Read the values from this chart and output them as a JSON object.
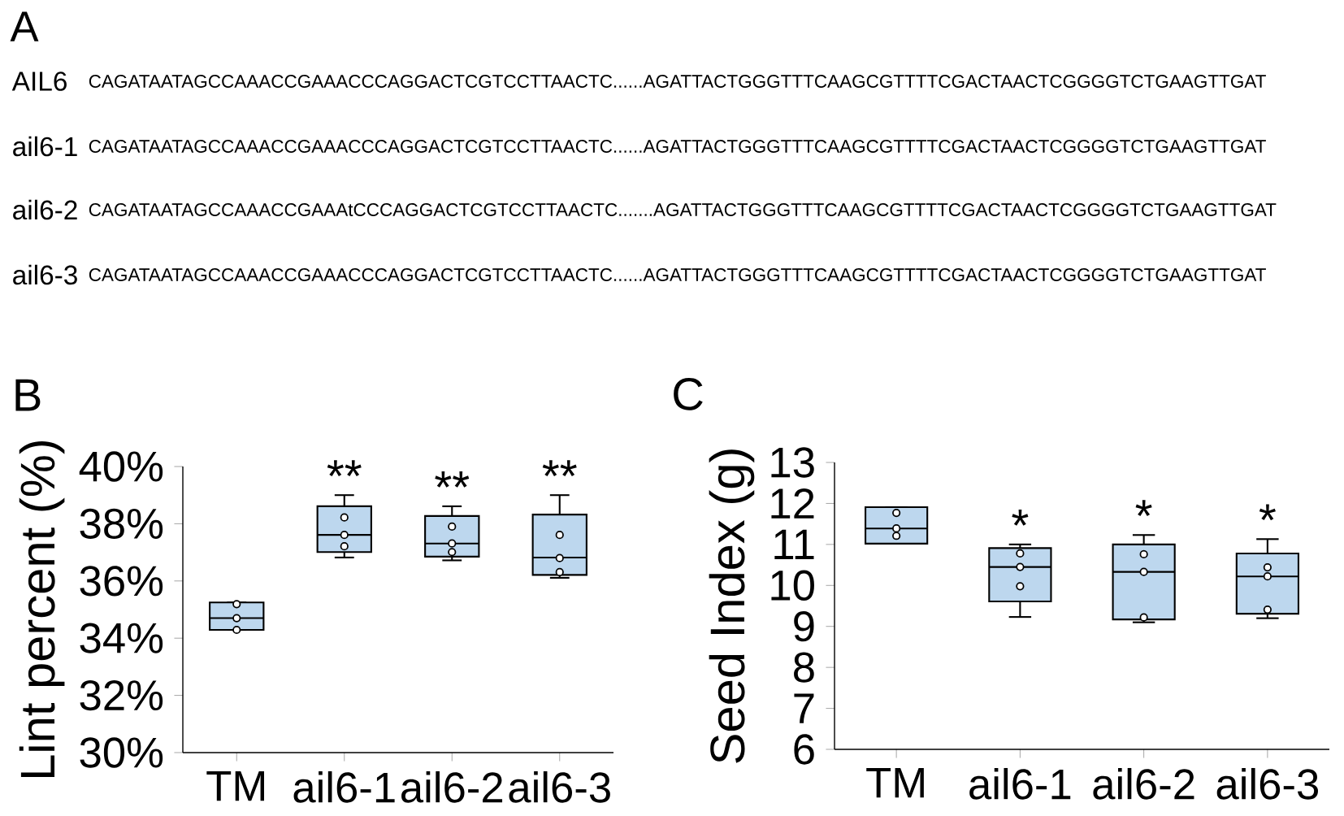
{
  "chart_data": [
    {
      "type": "other",
      "title": "A",
      "annotations": [
        "AIL6",
        "CAGATAATAGCCAAACCGAAACCCAGGACTCGTCCTTAACTC......AGATTACTGGGTTTCAAGCGTTTTCGACTAACTCGGGGTCTGAAGTTGAT",
        "ail6-1",
        "CAGATAATAGCCAAACCGAAACCCAGGACTCGTCCTTAACTC......AGATTACTGGGTTTCAAGCGTTTTCGACTAACTCGGGGTCTGAAGTTGAT",
        "ail6-2",
        "CAGATAATAGCCAAACCGAAAtCCCAGGACTCGTCCTTAACTC.......AGATTACTGGGTTTCAAGCGTTTTCGACTAACTCGGGGTCTGAAGTTGAT",
        "ail6-3",
        "CAGATAATAGCCAAACCGAAACCCAGGACTCGTCCTTAACTC......AGATTACTGGGTTTCAAGCGTTTTCGACTAACTCGGGGTCTGAAGTTGAT"
      ]
    },
    {
      "type": "box",
      "title": "B",
      "ylabel": "Lint percent (%)",
      "categories": [
        "TM",
        "ail6-1",
        "ail6-2",
        "ail6-3"
      ],
      "color": "#bdd7ee",
      "boxes": [
        {
          "low": 34.29,
          "q1": 34.29,
          "median": 34.7,
          "q3": 35.25,
          "high": 35.25
        },
        {
          "low": 36.82,
          "q1": 37.01,
          "median": 37.61,
          "q3": 38.61,
          "high": 39.0
        },
        {
          "low": 36.72,
          "q1": 36.85,
          "median": 37.31,
          "q3": 38.27,
          "high": 38.61
        },
        {
          "low": 36.11,
          "q1": 36.21,
          "median": 36.82,
          "q3": 38.32,
          "high": 39.0
        }
      ],
      "series": [
        {
          "type": "scatter",
          "marker": "circle",
          "color": "#000000",
          "x": [
            "TM",
            "TM",
            "TM",
            "ail6-1",
            "ail6-1",
            "ail6-1",
            "ail6-2",
            "ail6-2",
            "ail6-2",
            "ail6-3",
            "ail6-3",
            "ail6-3"
          ],
          "values": [
            35.19,
            34.7,
            34.29,
            38.22,
            37.61,
            37.21,
            37.9,
            37.31,
            37.01,
            37.61,
            36.8,
            36.31
          ]
        }
      ],
      "ylim": [
        30,
        40
      ],
      "yticks": [
        {
          "value": 30,
          "label": "30%"
        },
        {
          "value": 32,
          "label": "32%"
        },
        {
          "value": 34,
          "label": "34%"
        },
        {
          "value": 36,
          "label": "36%"
        },
        {
          "value": 38,
          "label": "38%"
        },
        {
          "value": 40,
          "label": "40%"
        }
      ],
      "annotations": [
        "**",
        "**",
        "**"
      ]
    },
    {
      "type": "box",
      "title": "C",
      "ylabel": "Seed Index (g)",
      "categories": [
        "TM",
        "ail6-1",
        "ail6-2",
        "ail6-3"
      ],
      "color": "#bdd7ee",
      "boxes": [
        {
          "low": 11.02,
          "q1": 11.02,
          "median": 11.39,
          "q3": 11.91,
          "high": 11.91
        },
        {
          "low": 9.23,
          "q1": 9.61,
          "median": 10.45,
          "q3": 10.91,
          "high": 11.0
        },
        {
          "low": 9.1,
          "q1": 9.17,
          "median": 10.33,
          "q3": 11.0,
          "high": 11.23
        },
        {
          "low": 9.2,
          "q1": 9.31,
          "median": 10.22,
          "q3": 10.78,
          "high": 11.13
        }
      ],
      "series": [
        {
          "type": "scatter",
          "marker": "circle",
          "color": "#000000",
          "x": [
            "TM",
            "TM",
            "TM",
            "ail6-1",
            "ail6-1",
            "ail6-1",
            "ail6-2",
            "ail6-2",
            "ail6-2",
            "ail6-3",
            "ail6-3",
            "ail6-3"
          ],
          "values": [
            11.77,
            11.39,
            11.21,
            10.78,
            10.45,
            9.98,
            10.76,
            10.33,
            9.22,
            10.44,
            10.22,
            9.41
          ]
        }
      ],
      "ylim": [
        6,
        13
      ],
      "yticks": [
        6,
        7,
        8,
        9,
        10,
        11,
        12,
        13
      ],
      "annotations": [
        "*",
        "*",
        "*"
      ]
    }
  ]
}
